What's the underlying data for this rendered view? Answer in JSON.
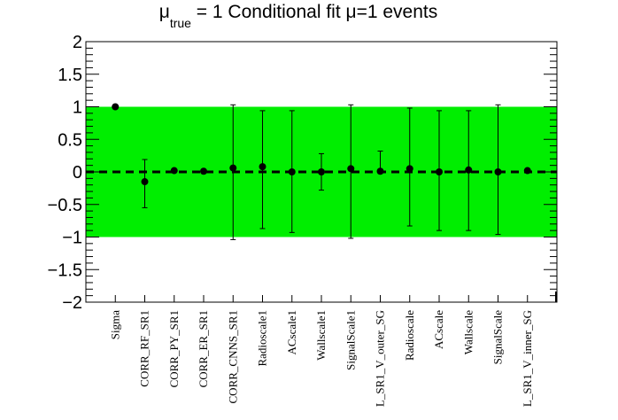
{
  "chart_data": {
    "type": "scatter",
    "title": {
      "symbol": "μ",
      "subscript": "true",
      "rest": " = 1 Conditional fit μ=1 events"
    },
    "xlabel": "",
    "ylabel": "",
    "ylim": [
      -2,
      2
    ],
    "yticks": [
      2,
      1.5,
      1,
      0.5,
      0,
      -0.5,
      -1,
      -1.5,
      -2
    ],
    "ytick_labels": [
      "2",
      "1.5",
      "1",
      "0.5",
      "0",
      "−0.5",
      "−1",
      "−1.5",
      "−2"
    ],
    "band": {
      "low": -1,
      "high": 1,
      "color": "#00ee00"
    },
    "reference_line": {
      "y": 0,
      "style": "dashed",
      "color": "#000000"
    },
    "grid": false,
    "legend": "none",
    "marker_color": "#000000",
    "categories": [
      "Sigma",
      "CORR_RF_SR1",
      "CORR_PY_SR1",
      "CORR_ER_SR1",
      "CORR_CNNS_SR1",
      "Radioscale1",
      "ACscale1",
      "Wallscale1",
      "SignalScale1",
      "L_SR1_V_outer_SG",
      "Radioscale",
      "ACscale",
      "Wallscale",
      "SignalScale",
      "L_SR1_V_inner_SG"
    ],
    "series": [
      {
        "values": [
          1.0,
          -0.15,
          0.02,
          0.01,
          0.06,
          0.08,
          0.0,
          0.0,
          0.05,
          0.01,
          0.05,
          0.0,
          0.03,
          0.0,
          0.02
        ],
        "err_low": [
          0,
          0.4,
          0,
          0,
          1.1,
          0.95,
          0.93,
          0.28,
          1.07,
          0,
          0.88,
          0.9,
          0.93,
          0.96,
          0
        ],
        "err_high": [
          0,
          0.34,
          0,
          0,
          0.97,
          0.86,
          0.94,
          0.28,
          0.98,
          0.31,
          0.93,
          0.94,
          0.91,
          1.03,
          0
        ]
      }
    ]
  }
}
